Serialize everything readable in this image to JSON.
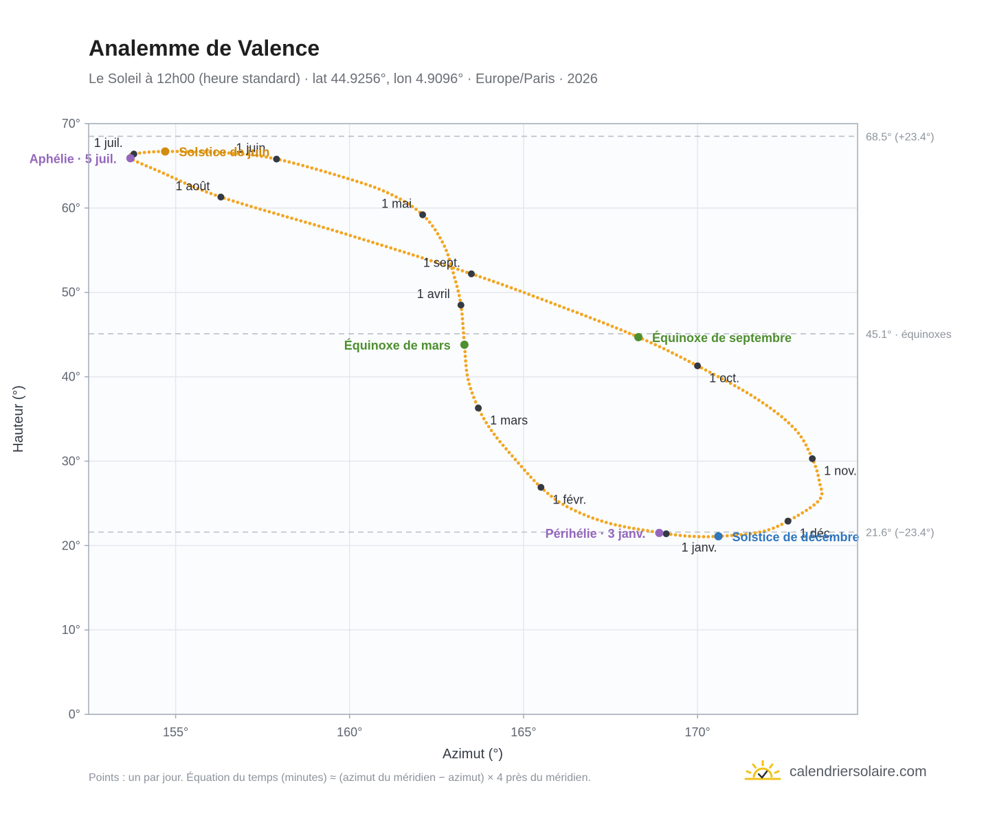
{
  "header": {
    "title": "Analemme de Valence",
    "subtitle": "Le Soleil à 12h00 (heure standard) · lat 44.9256°, lon 4.9096° · Europe/Paris · 2026"
  },
  "footer": {
    "footnote": "Points : un par jour. Équation du temps (minutes) ≈ (azimut du méridien − azimut) × 4 près du méridien.",
    "brand_text": "calendriersolaire.com",
    "brand_icon": "sun-icon"
  },
  "colors": {
    "curve": "#f2a623",
    "month_marker": "#333a44",
    "apsis": "#9467bd",
    "equinox": "#4e8f2f",
    "solstice_june": "#d18b0d",
    "solstice_december": "#2f76bd",
    "grid": "#e4e7ec",
    "reference_line": "#b9bec6",
    "frame": "#a3abb6"
  },
  "chart_data": {
    "type": "scatter",
    "xlabel": "Azimut (°)",
    "ylabel": "Hauteur (°)",
    "xlim": [
      152.5,
      174.6
    ],
    "ylim": [
      0,
      70
    ],
    "xticks": [
      155,
      160,
      165,
      170
    ],
    "xtick_labels": [
      "155°",
      "160°",
      "165°",
      "170°"
    ],
    "yticks": [
      0,
      10,
      20,
      30,
      40,
      50,
      60,
      70
    ],
    "ytick_labels": [
      "0°",
      "10°",
      "20°",
      "30°",
      "40°",
      "50°",
      "60°",
      "70°"
    ],
    "grid": true,
    "reference_lines": [
      {
        "y": 68.5,
        "label": "68.5° (+23.4°)"
      },
      {
        "y": 45.1,
        "label": "45.1° · équinoxes"
      },
      {
        "y": 21.6,
        "label": "21.6° (−23.4°)"
      }
    ],
    "month_markers": [
      {
        "label": "1 janv.",
        "x": 169.1,
        "y": 21.4,
        "pos": "below"
      },
      {
        "label": "1 févr.",
        "x": 165.5,
        "y": 26.9,
        "pos": "below-right"
      },
      {
        "label": "1 mars",
        "x": 163.7,
        "y": 36.3,
        "pos": "below-right"
      },
      {
        "label": "1 avril",
        "x": 163.2,
        "y": 48.5,
        "pos": "above-left"
      },
      {
        "label": "1 mai",
        "x": 162.1,
        "y": 59.2,
        "pos": "above-left"
      },
      {
        "label": "1 juin",
        "x": 157.9,
        "y": 65.8,
        "pos": "above-left"
      },
      {
        "label": "1 juil.",
        "x": 153.8,
        "y": 66.4,
        "pos": "above-left"
      },
      {
        "label": "1 août",
        "x": 156.3,
        "y": 61.3,
        "pos": "above-left"
      },
      {
        "label": "1 sept.",
        "x": 163.5,
        "y": 52.2,
        "pos": "above-left"
      },
      {
        "label": "1 oct.",
        "x": 170.0,
        "y": 41.3,
        "pos": "below-right"
      },
      {
        "label": "1 nov.",
        "x": 173.3,
        "y": 30.3,
        "pos": "below-right"
      },
      {
        "label": "1 déc.",
        "x": 172.6,
        "y": 22.9,
        "pos": "below-right"
      }
    ],
    "events": [
      {
        "label": "Périhélie · 3 janv.",
        "x": 168.9,
        "y": 21.5,
        "kind": "apsis",
        "side": "left"
      },
      {
        "label": "Aphélie · 5 juil.",
        "x": 153.7,
        "y": 65.9,
        "kind": "apsis",
        "side": "left"
      },
      {
        "label": "Équinoxe de mars",
        "x": 163.3,
        "y": 43.8,
        "kind": "equinox",
        "side": "left"
      },
      {
        "label": "Équinoxe de septembre",
        "x": 168.3,
        "y": 44.7,
        "kind": "equinox",
        "side": "right"
      },
      {
        "label": "Solstice de juin",
        "x": 154.7,
        "y": 66.7,
        "kind": "solstice_june",
        "side": "right"
      },
      {
        "label": "Solstice de décembre",
        "x": 170.6,
        "y": 21.1,
        "kind": "solstice_december",
        "side": "right"
      }
    ],
    "curve_path": [
      [
        169.1,
        21.4
      ],
      [
        167.5,
        22.6
      ],
      [
        166.3,
        24.5
      ],
      [
        165.5,
        26.9
      ],
      [
        164.7,
        30.5
      ],
      [
        164.1,
        33.5
      ],
      [
        163.7,
        36.3
      ],
      [
        163.4,
        39.8
      ],
      [
        163.3,
        43.8
      ],
      [
        163.2,
        48.5
      ],
      [
        163.0,
        52.0
      ],
      [
        162.7,
        55.7
      ],
      [
        162.1,
        59.2
      ],
      [
        161.1,
        61.8
      ],
      [
        159.7,
        63.8
      ],
      [
        157.9,
        65.8
      ],
      [
        156.6,
        66.5
      ],
      [
        154.7,
        66.7
      ],
      [
        153.8,
        66.4
      ],
      [
        153.7,
        65.9
      ],
      [
        154.5,
        64.4
      ],
      [
        156.3,
        61.3
      ],
      [
        159.9,
        56.9
      ],
      [
        163.5,
        52.2
      ],
      [
        165.9,
        48.6
      ],
      [
        168.3,
        44.7
      ],
      [
        170.0,
        41.3
      ],
      [
        171.7,
        37.4
      ],
      [
        172.8,
        33.8
      ],
      [
        173.3,
        30.3
      ],
      [
        173.5,
        27.6
      ],
      [
        173.5,
        25.4
      ],
      [
        172.6,
        22.9
      ],
      [
        171.8,
        21.6
      ],
      [
        170.6,
        21.1
      ],
      [
        169.8,
        21.1
      ],
      [
        169.1,
        21.4
      ]
    ]
  }
}
